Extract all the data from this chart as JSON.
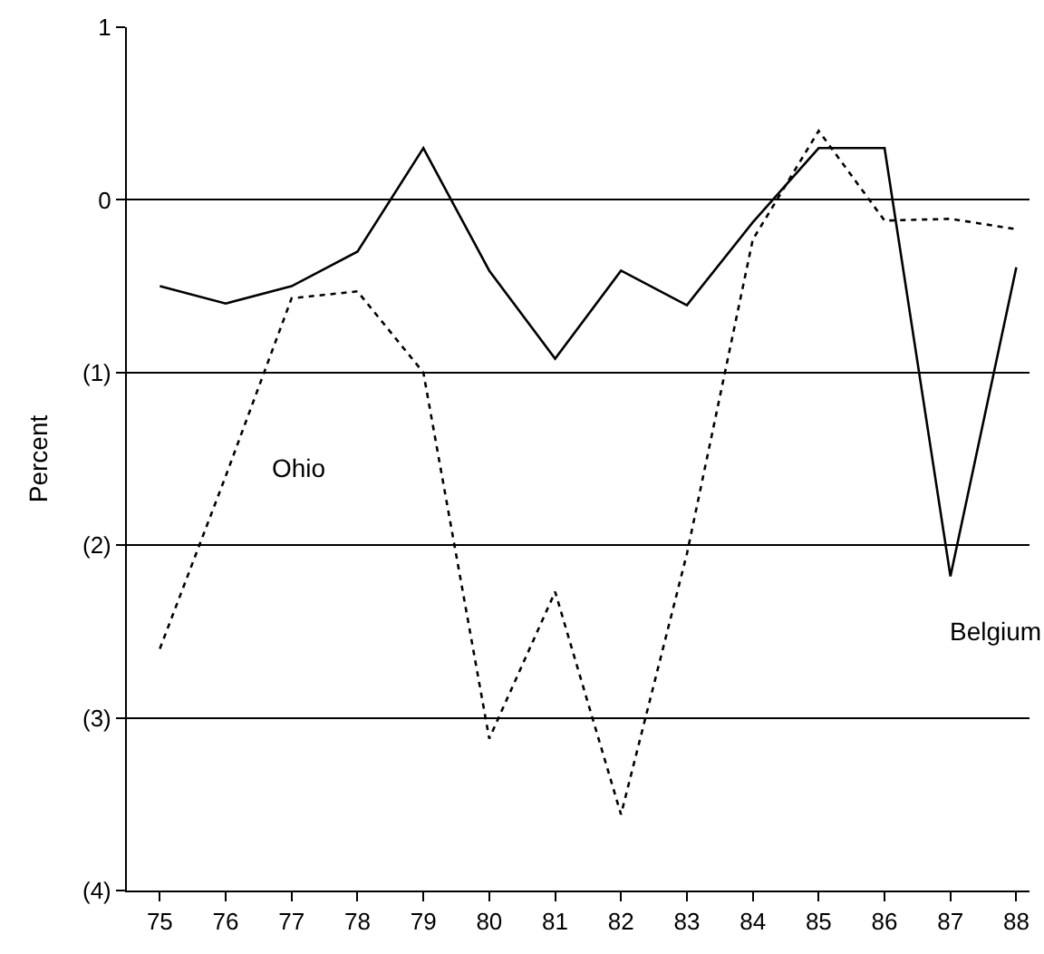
{
  "chart_data": {
    "type": "line",
    "ylabel": "Percent",
    "x": [
      75,
      76,
      77,
      78,
      79,
      80,
      81,
      82,
      83,
      84,
      85,
      86,
      87,
      88
    ],
    "series": [
      {
        "name": "Belgium",
        "color": "#000000",
        "line_style": "solid",
        "values": [
          -0.5,
          -0.6,
          -0.5,
          -0.3,
          0.3,
          -0.41,
          -0.92,
          -0.41,
          -0.61,
          -0.13,
          0.3,
          0.3,
          -2.18,
          -0.39
        ]
      },
      {
        "name": "Ohio",
        "color": "#000000",
        "line_style": "dotted",
        "values": [
          -2.6,
          -1.6,
          -0.57,
          -0.53,
          -1.0,
          -3.12,
          -2.27,
          -3.56,
          -2.05,
          -0.23,
          0.4,
          -0.12,
          -0.11,
          -0.17
        ]
      }
    ],
    "xlim": [
      74.5,
      88.2
    ],
    "xticks": [
      75,
      76,
      77,
      78,
      79,
      80,
      81,
      82,
      83,
      84,
      85,
      86,
      87,
      88
    ],
    "ylim": [
      -4,
      1
    ],
    "yticks": [
      1,
      0,
      {
        "value": -1,
        "label": "(1)"
      },
      {
        "value": -2,
        "label": "(2)"
      },
      {
        "value": -3,
        "label": "(3)"
      },
      {
        "value": -4,
        "label": "(4)"
      }
    ],
    "grid": "y",
    "legend": false,
    "marker": "none"
  }
}
